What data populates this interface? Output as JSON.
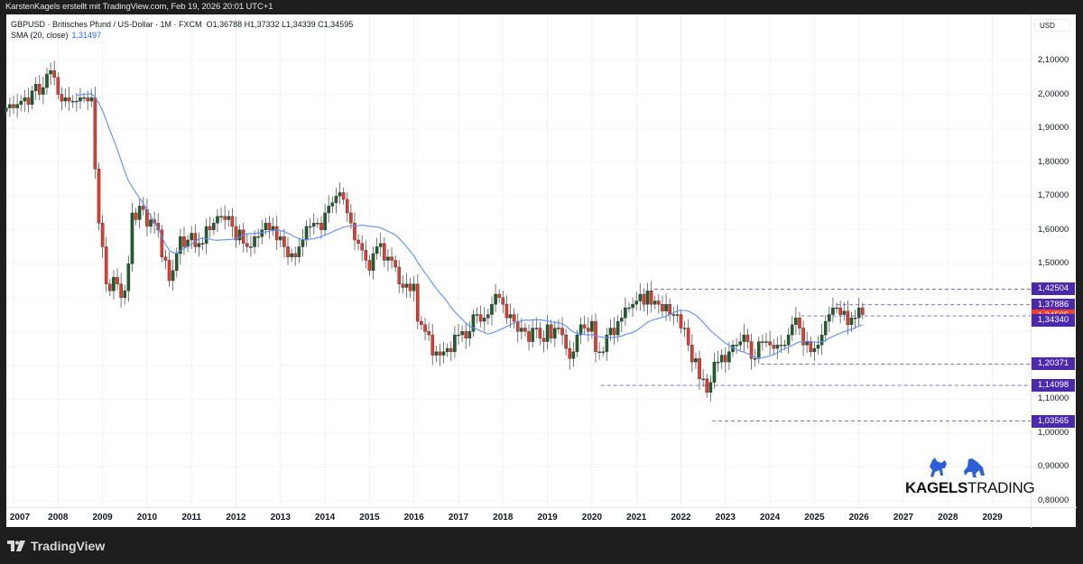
{
  "header": {
    "caption": "KarstenKagels erstellt mit TradingView.com, Feb 19, 2026 20:01 UTC+1"
  },
  "legend": {
    "symbol_line": "GBPUSD · Britisches Pfund / US-Dollar · 1M · FXCM",
    "ohlc": "O1,36788  H1,37332  L1,34339  C1,34595",
    "sma_label": "SMA (20, close)",
    "sma_value": "1,31497"
  },
  "axis": {
    "currency": "USD"
  },
  "branding": {
    "kagels_bold": "KAGELS",
    "kagels_light": "TRADING",
    "tradingview": "TradingView"
  },
  "colors": {
    "up": "#1e5e2a",
    "down": "#e23b2e",
    "sma": "#5b8ff9",
    "level": "#4a2aa8",
    "current": "#f23e2e"
  },
  "chart_data": {
    "type": "candlestick",
    "title": "GBPUSD · Britisches Pfund / US-Dollar · 1M · FXCM",
    "xlabel": "",
    "ylabel": "USD",
    "ylim": [
      0.78,
      2.15
    ],
    "grid": true,
    "y_ticks": [
      "2,10000",
      "2,00000",
      "1,90000",
      "1,80000",
      "1,70000",
      "1,60000",
      "1,50000",
      "1,40000",
      "1,30000",
      "1,20000",
      "1,10000",
      "1,00000",
      "0,90000",
      "0,80000"
    ],
    "x_ticks": [
      "2007",
      "2008",
      "2009",
      "2010",
      "2011",
      "2012",
      "2013",
      "2014",
      "2015",
      "2016",
      "2017",
      "2018",
      "2019",
      "2020",
      "2021",
      "2022",
      "2023",
      "2024",
      "2025",
      "2026",
      "2027",
      "2028",
      "2029"
    ],
    "last": {
      "open": 1.36788,
      "high": 1.37332,
      "low": 1.34339,
      "close": 1.34595
    },
    "sma": {
      "period": 20,
      "value": 1.31497
    },
    "levels": [
      {
        "price": 1.42504,
        "label": "1,42504",
        "start_year": 2021.4
      },
      {
        "price": 1.37886,
        "label": "1,37886",
        "start_year": 2025.5
      },
      {
        "price": 1.34595,
        "label": "1,34595",
        "start_year": 2024.7,
        "current": true
      },
      {
        "price": 1.3434,
        "label": "1,34340",
        "sma_label": true
      },
      {
        "price": 1.20371,
        "label": "1,20371",
        "start_year": 2023.8
      },
      {
        "price": 1.14098,
        "label": "1,14098",
        "start_year": 2020.2
      },
      {
        "price": 1.03565,
        "label": "1,03565",
        "start_year": 2022.7
      }
    ],
    "monthly_close_start": "2006-11",
    "closes": [
      1.96,
      1.97,
      1.96,
      1.97,
      1.98,
      1.99,
      1.97,
      2.01,
      2.03,
      2.0,
      2.02,
      2.06,
      2.07,
      2.05,
      2.0,
      1.98,
      1.99,
      1.98,
      1.98,
      1.98,
      1.99,
      1.99,
      1.98,
      1.99,
      1.78,
      1.62,
      1.55,
      1.44,
      1.42,
      1.46,
      1.44,
      1.4,
      1.42,
      1.5,
      1.65,
      1.63,
      1.67,
      1.66,
      1.61,
      1.63,
      1.62,
      1.6,
      1.52,
      1.51,
      1.45,
      1.48,
      1.53,
      1.58,
      1.55,
      1.57,
      1.59,
      1.55,
      1.56,
      1.56,
      1.61,
      1.6,
      1.62,
      1.64,
      1.64,
      1.63,
      1.64,
      1.61,
      1.57,
      1.6,
      1.56,
      1.55,
      1.55,
      1.58,
      1.58,
      1.6,
      1.62,
      1.6,
      1.61,
      1.57,
      1.58,
      1.55,
      1.52,
      1.53,
      1.52,
      1.55,
      1.57,
      1.61,
      1.61,
      1.62,
      1.62,
      1.6,
      1.65,
      1.67,
      1.68,
      1.7,
      1.71,
      1.69,
      1.65,
      1.62,
      1.57,
      1.56,
      1.54,
      1.51,
      1.48,
      1.53,
      1.55,
      1.56,
      1.51,
      1.52,
      1.51,
      1.49,
      1.44,
      1.43,
      1.44,
      1.42,
      1.44,
      1.33,
      1.32,
      1.3,
      1.29,
      1.23,
      1.24,
      1.23,
      1.24,
      1.25,
      1.24,
      1.29,
      1.29,
      1.3,
      1.28,
      1.3,
      1.35,
      1.35,
      1.33,
      1.34,
      1.35,
      1.38,
      1.41,
      1.4,
      1.38,
      1.34,
      1.35,
      1.33,
      1.3,
      1.31,
      1.3,
      1.27,
      1.31,
      1.31,
      1.28,
      1.27,
      1.32,
      1.28,
      1.31,
      1.31,
      1.29,
      1.25,
      1.22,
      1.24,
      1.29,
      1.32,
      1.31,
      1.3,
      1.33,
      1.24,
      1.24,
      1.24,
      1.29,
      1.31,
      1.29,
      1.33,
      1.34,
      1.37,
      1.37,
      1.38,
      1.39,
      1.41,
      1.38,
      1.42,
      1.38,
      1.39,
      1.38,
      1.36,
      1.38,
      1.35,
      1.35,
      1.35,
      1.31,
      1.31,
      1.26,
      1.21,
      1.22,
      1.16,
      1.16,
      1.12,
      1.15,
      1.21,
      1.21,
      1.23,
      1.21,
      1.24,
      1.26,
      1.26,
      1.27,
      1.29,
      1.27,
      1.22,
      1.22,
      1.27,
      1.27,
      1.27,
      1.26,
      1.25,
      1.26,
      1.26,
      1.26,
      1.29,
      1.32,
      1.34,
      1.31,
      1.26,
      1.27,
      1.24,
      1.25,
      1.26,
      1.29,
      1.33,
      1.35,
      1.37,
      1.37,
      1.35,
      1.36,
      1.32,
      1.34,
      1.34,
      1.37,
      1.35
    ]
  }
}
